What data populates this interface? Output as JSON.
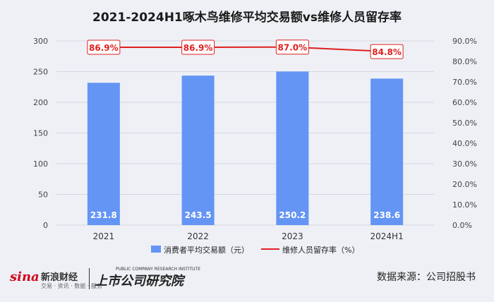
{
  "title": "2021-2024H1啄木鸟维修平均交易额vs维修人员留存率",
  "chart_data": {
    "type": "bar",
    "categories": [
      "2021",
      "2022",
      "2023",
      "2024H1"
    ],
    "series": [
      {
        "name": "消费者平均交易额（元）",
        "type": "bar",
        "axis": "left",
        "values": [
          231.8,
          243.5,
          250.2,
          238.6
        ],
        "labels": [
          "231.8",
          "243.5",
          "250.2",
          "238.6"
        ],
        "color": "#6495f5"
      },
      {
        "name": "维修人员留存率（%）",
        "type": "line",
        "axis": "right",
        "values": [
          86.9,
          86.9,
          87.0,
          84.8
        ],
        "labels": [
          "86.9%",
          "86.9%",
          "87.0%",
          "84.8%"
        ],
        "color": "#e02020"
      }
    ],
    "y_left": {
      "lim": [
        0,
        300
      ],
      "ticks": [
        "0",
        "50",
        "100",
        "150",
        "200",
        "250",
        "300"
      ]
    },
    "y_right": {
      "lim": [
        0,
        90
      ],
      "ticks": [
        "0.0%",
        "10.0%",
        "20.0%",
        "30.0%",
        "40.0%",
        "50.0%",
        "60.0%",
        "70.0%",
        "80.0%",
        "90.0%"
      ]
    },
    "grid": true,
    "legend_position": "bottom"
  },
  "footer": {
    "sina_logo": "sina",
    "sina_name": "新浪财经",
    "sina_sub": "交易 · 资讯 · 数据 · 服务",
    "institute_en": "PUBLIC COMPANY RESEARCH INSTITUTE",
    "institute_cn": "上市公司研究院",
    "source": "数据来源：公司招股书"
  }
}
